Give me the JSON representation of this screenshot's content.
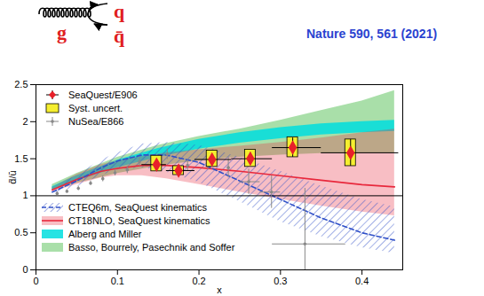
{
  "chart_data": {
    "type": "scatter",
    "x_label": "x",
    "y_label": "d̄/ū",
    "xlim": [
      0,
      0.45
    ],
    "xticks": [
      0,
      0.1,
      0.2,
      0.3,
      0.4
    ],
    "ylim": [
      0,
      2.5
    ],
    "yticks": [
      0,
      0.5,
      1,
      1.5,
      2,
      2.5
    ],
    "grid": false,
    "legend": "left",
    "reference_y": 1,
    "annotations": {
      "citation": "Nature 590, 561 (2021)",
      "gluon": "g",
      "quark": "q",
      "antiquark": "q̄"
    },
    "series": [
      {
        "name": "SeaQuest/E906",
        "type": "scatter",
        "marker": "diamond",
        "color": "#e8202a",
        "x": [
          0.148,
          0.175,
          0.216,
          0.263,
          0.315,
          0.386
        ],
        "values": [
          1.42,
          1.34,
          1.49,
          1.5,
          1.65,
          1.58
        ],
        "yerr": [
          0.07,
          0.05,
          0.07,
          0.08,
          0.13,
          0.18
        ],
        "x_low": [
          0.13,
          0.16,
          0.195,
          0.24,
          0.29,
          0.35
        ],
        "x_high": [
          0.16,
          0.195,
          0.24,
          0.29,
          0.35,
          0.445
        ]
      },
      {
        "name": "Syst. uncert.",
        "type": "box",
        "color": "#f5ee30",
        "x": [
          0.148,
          0.175,
          0.216,
          0.263,
          0.315,
          0.386
        ],
        "low": [
          1.33,
          1.28,
          1.39,
          1.39,
          1.52,
          1.4
        ],
        "high": [
          1.54,
          1.4,
          1.61,
          1.62,
          1.79,
          1.76
        ]
      },
      {
        "name": "NuSea/E866",
        "type": "scatter",
        "marker": "circle",
        "color": "#888888",
        "x": [
          0.026,
          0.038,
          0.052,
          0.067,
          0.082,
          0.097,
          0.112,
          0.127,
          0.142,
          0.161,
          0.186,
          0.211,
          0.236,
          0.261,
          0.289,
          0.33
        ],
        "values": [
          1.03,
          1.06,
          1.1,
          1.17,
          1.23,
          1.31,
          1.35,
          1.46,
          1.48,
          1.56,
          1.41,
          1.46,
          1.38,
          1.19,
          1.05,
          0.35
        ],
        "yerr": [
          0.02,
          0.02,
          0.03,
          0.03,
          0.04,
          0.04,
          0.05,
          0.06,
          0.07,
          0.07,
          0.08,
          0.11,
          0.14,
          0.17,
          0.22,
          0.75
        ],
        "x_low": [
          null,
          null,
          null,
          null,
          null,
          null,
          null,
          null,
          null,
          null,
          null,
          null,
          null,
          0.25,
          0.275,
          0.29
        ],
        "x_high": [
          null,
          null,
          null,
          null,
          null,
          null,
          null,
          null,
          null,
          null,
          null,
          null,
          null,
          0.275,
          0.3,
          0.38
        ]
      },
      {
        "name": "CTEQ6m, SeaQuest kinematics",
        "type": "hatched_band",
        "color": "#3050c8",
        "line_style": "dashed",
        "x": [
          0.02,
          0.05,
          0.08,
          0.1,
          0.13,
          0.16,
          0.2,
          0.25,
          0.3,
          0.35,
          0.4,
          0.44
        ],
        "values": [
          1.05,
          1.2,
          1.38,
          1.47,
          1.55,
          1.55,
          1.45,
          1.2,
          0.95,
          0.7,
          0.5,
          0.4
        ],
        "low": [
          1.02,
          1.12,
          1.27,
          1.35,
          1.38,
          1.32,
          1.18,
          0.92,
          0.65,
          0.45,
          0.3,
          0.22
        ],
        "high": [
          1.08,
          1.28,
          1.48,
          1.58,
          1.7,
          1.72,
          1.68,
          1.52,
          1.33,
          1.13,
          0.95,
          0.85
        ]
      },
      {
        "name": "CT18NLO, SeaQuest kinematics",
        "type": "band_line",
        "color": "#e8283c",
        "line_style": "solid",
        "x": [
          0.02,
          0.05,
          0.08,
          0.1,
          0.13,
          0.16,
          0.2,
          0.25,
          0.3,
          0.35,
          0.4,
          0.44
        ],
        "values": [
          1.08,
          1.22,
          1.33,
          1.37,
          1.41,
          1.41,
          1.38,
          1.33,
          1.27,
          1.21,
          1.15,
          1.12
        ],
        "low": [
          1.05,
          1.15,
          1.24,
          1.27,
          1.27,
          1.23,
          1.15,
          1.05,
          0.95,
          0.86,
          0.78,
          0.73
        ],
        "high": [
          1.11,
          1.29,
          1.42,
          1.47,
          1.53,
          1.58,
          1.62,
          1.67,
          1.72,
          1.78,
          1.85,
          1.9
        ]
      },
      {
        "name": "Alberg and Miller",
        "type": "band",
        "color": "#00dede",
        "x": [
          0.02,
          0.05,
          0.1,
          0.15,
          0.2,
          0.25,
          0.3,
          0.35,
          0.4,
          0.44
        ],
        "low": [
          1.08,
          1.2,
          1.38,
          1.52,
          1.63,
          1.71,
          1.77,
          1.82,
          1.85,
          1.87
        ],
        "high": [
          1.12,
          1.27,
          1.48,
          1.64,
          1.76,
          1.85,
          1.92,
          1.97,
          2.0,
          2.02
        ]
      },
      {
        "name": "Basso, Bourrely, Pasechnik and Soffer",
        "type": "band",
        "color": "#9ad99a",
        "x": [
          0.02,
          0.05,
          0.1,
          0.15,
          0.2,
          0.25,
          0.3,
          0.35,
          0.4,
          0.44
        ],
        "low": [
          1.08,
          1.17,
          1.3,
          1.4,
          1.47,
          1.52,
          1.55,
          1.57,
          1.58,
          1.58
        ],
        "high": [
          1.15,
          1.3,
          1.52,
          1.68,
          1.8,
          1.9,
          2.02,
          2.15,
          2.28,
          2.42
        ]
      }
    ]
  }
}
